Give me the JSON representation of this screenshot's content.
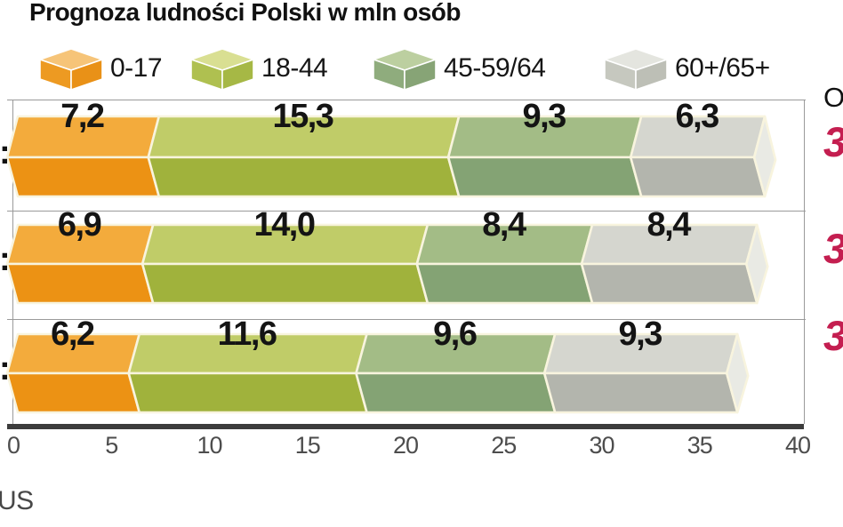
{
  "title": "Prognoza ludności Polski w mln osób",
  "legend": {
    "items": [
      {
        "label": "0-17"
      },
      {
        "label": "18-44"
      },
      {
        "label": "45-59/64"
      },
      {
        "label": "60+/65+"
      }
    ]
  },
  "chart_data": {
    "type": "bar",
    "orientation": "horizontal",
    "stacked": true,
    "title": "Prognoza ludności Polski w mln osób",
    "categories_visible": [
      ":",
      ":",
      ":"
    ],
    "series": [
      {
        "name": "0-17",
        "values": [
          7.2,
          6.9,
          6.2
        ]
      },
      {
        "name": "18-44",
        "values": [
          15.3,
          14.0,
          11.6
        ]
      },
      {
        "name": "45-59/64",
        "values": [
          9.3,
          8.4,
          9.6
        ]
      },
      {
        "name": "60+/65+",
        "values": [
          6.3,
          8.4,
          9.3
        ]
      }
    ],
    "value_labels": [
      [
        "7,2",
        "15,3",
        "9,3",
        "6,3"
      ],
      [
        "6,9",
        "14,0",
        "8,4",
        "8,4"
      ],
      [
        "6,2",
        "11,6",
        "9,6",
        "9,3"
      ]
    ],
    "totals_visible": [
      "3",
      "3",
      "3"
    ],
    "xlim": [
      0,
      40
    ],
    "xticks": [
      "0",
      "5",
      "10",
      "15",
      "20",
      "25",
      "30",
      "35",
      "40"
    ],
    "legend_position": "top",
    "grid": false
  },
  "annotations": {
    "totals_heading_partial": "O",
    "source_partial": "US"
  },
  "colors": {
    "series": [
      {
        "name": "0-17",
        "top": "#F3AB3C",
        "front": "#EC9214",
        "cube_top": "#F6C478",
        "cube_left": "#ED9A22",
        "cube_right": "#E99117"
      },
      {
        "name": "18-44",
        "top": "#C0CC68",
        "front": "#A0B23C",
        "cube_top": "#D9DF92",
        "cube_left": "#AFC050",
        "cube_right": "#A6B845"
      },
      {
        "name": "45-59/64",
        "top": "#A3BC86",
        "front": "#84A374",
        "cube_top": "#BCCFA0",
        "cube_left": "#8FAC7D",
        "cube_right": "#87A476"
      },
      {
        "name": "60+/65+",
        "top": "#D5D6CF",
        "front": "#B3B5AD",
        "cube_top": "#E4E5DF",
        "cube_left": "#C6C8BF",
        "cube_right": "#BDBFB6"
      }
    ],
    "end_cap": "#E9EAE4",
    "separator_stroke": "#F8F4DE",
    "total_red": "#C41E50",
    "axis_line": "#3C3C3C",
    "frame_line": "#9A9A9A",
    "tick_text": "#4D4D4D",
    "label_text": "#141414"
  }
}
